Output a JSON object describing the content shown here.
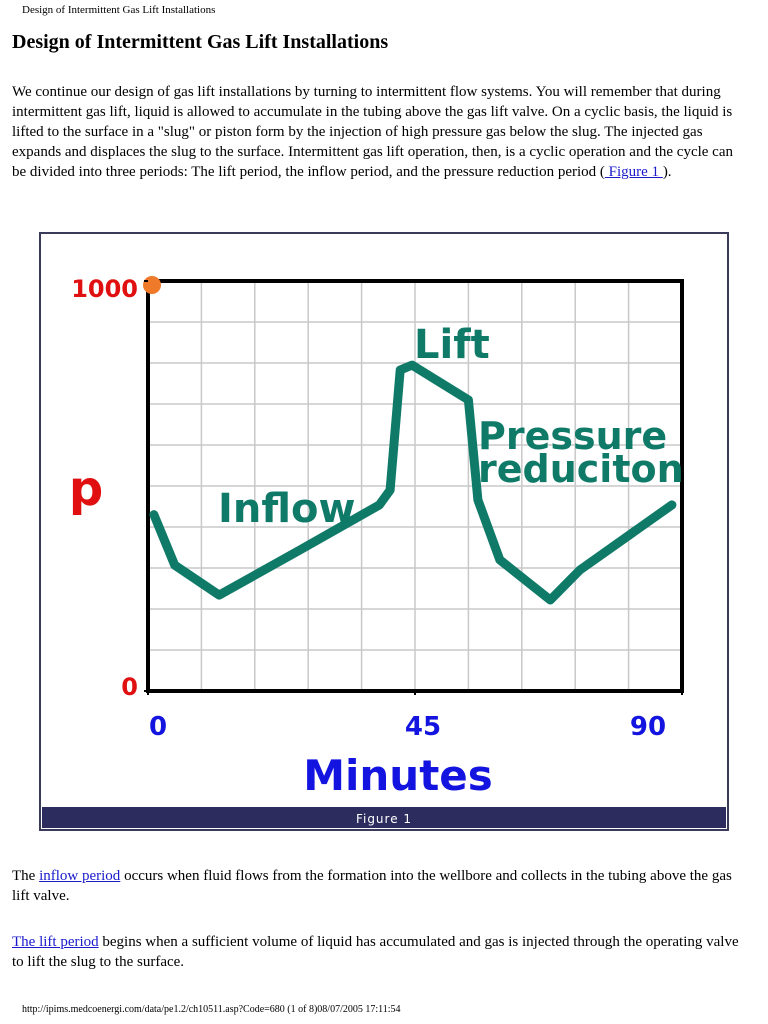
{
  "header": "Design of Intermittent Gas Lift Installations",
  "title": "Design of Intermittent Gas Lift Installations",
  "intro": {
    "before": "We continue our design of gas lift installations by turning to intermittent flow systems. You will remember that during intermittent gas lift, liquid is allowed to accumulate in the tubing above the gas lift valve. On a cyclic basis, the liquid is lifted to the surface in a \"slug\" or piston form by the injection of high pressure gas below the slug. The injected gas expands and displaces the slug to the surface. Intermittent gas lift operation, then, is a cyclic operation and the cycle can be divided into three periods: The lift period, the inflow period, and the pressure reduction period (",
    "link": " Figure 1 ",
    "after": ")."
  },
  "chart_data": {
    "type": "line",
    "x_label": "Minutes",
    "y_label": "p",
    "x": [
      1,
      4.5,
      12,
      25.6,
      39,
      40.8,
      42.5,
      44.5,
      54,
      55.6,
      59.3,
      67.8,
      72.8,
      88.3
    ],
    "values": [
      430,
      307,
      234,
      344,
      454,
      490,
      783,
      795,
      710,
      466,
      320,
      222,
      295,
      454
    ],
    "color": "#0f7a68",
    "xlim": [
      0,
      90
    ],
    "xticks": [
      0,
      45,
      90
    ],
    "ylim": [
      0,
      1000
    ],
    "yticks": [
      0,
      1000
    ],
    "grid": true,
    "annotations": [
      "Lift",
      "Inflow",
      "Pressure",
      "reduciton"
    ],
    "caption": "Figure 1"
  },
  "paragraphs": [
    {
      "before": "The ",
      "link": "inflow period",
      "after": " occurs when fluid flows from the formation into the wellbore and collects in the tubing above the gas lift valve."
    },
    {
      "before": "",
      "link": "The lift period",
      "after": " begins when a sufficient volume of liquid has accumulated and gas is injected through the operating valve to lift the slug to the surface."
    }
  ],
  "footer": "http://ipims.medcoenergi.com/data/pe1.2/ch10511.asp?Code=680 (1 of 8)08/07/2005 17:11:54"
}
